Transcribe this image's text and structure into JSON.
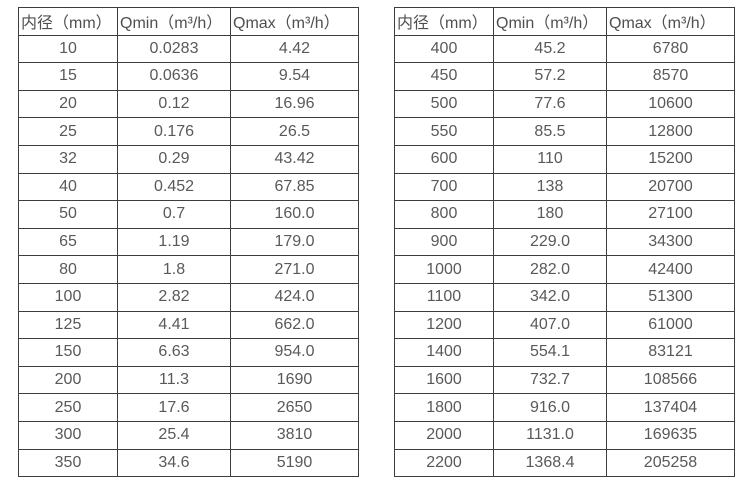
{
  "columns": [
    "内径（mm）",
    "Qmin（m³/h）",
    "Qmax（m³/h）"
  ],
  "left_table": {
    "rows": [
      [
        "10",
        "0.0283",
        "4.42"
      ],
      [
        "15",
        "0.0636",
        "9.54"
      ],
      [
        "20",
        "0.12",
        "16.96"
      ],
      [
        "25",
        "0.176",
        "26.5"
      ],
      [
        "32",
        "0.29",
        "43.42"
      ],
      [
        "40",
        "0.452",
        "67.85"
      ],
      [
        "50",
        "0.7",
        "160.0"
      ],
      [
        "65",
        "1.19",
        "179.0"
      ],
      [
        "80",
        "1.8",
        "271.0"
      ],
      [
        "100",
        "2.82",
        "424.0"
      ],
      [
        "125",
        "4.41",
        "662.0"
      ],
      [
        "150",
        "6.63",
        "954.0"
      ],
      [
        "200",
        "11.3",
        "1690"
      ],
      [
        "250",
        "17.6",
        "2650"
      ],
      [
        "300",
        "25.4",
        "3810"
      ],
      [
        "350",
        "34.6",
        "5190"
      ]
    ]
  },
  "right_table": {
    "rows": [
      [
        "400",
        "45.2",
        "6780"
      ],
      [
        "450",
        "57.2",
        "8570"
      ],
      [
        "500",
        "77.6",
        "10600"
      ],
      [
        "550",
        "85.5",
        "12800"
      ],
      [
        "600",
        "110",
        "15200"
      ],
      [
        "700",
        "138",
        "20700"
      ],
      [
        "800",
        "180",
        "27100"
      ],
      [
        "900",
        "229.0",
        "34300"
      ],
      [
        "1000",
        "282.0",
        "42400"
      ],
      [
        "1100",
        "342.0",
        "51300"
      ],
      [
        "1200",
        "407.0",
        "61000"
      ],
      [
        "1400",
        "554.1",
        "83121"
      ],
      [
        "1600",
        "732.7",
        "108566"
      ],
      [
        "1800",
        "916.0",
        "137404"
      ],
      [
        "2000",
        "1131.0",
        "169635"
      ],
      [
        "2200",
        "1368.4",
        "205258"
      ]
    ]
  },
  "chart_data": {
    "type": "table",
    "title": "",
    "columns": [
      "内径（mm）",
      "Qmin（m³/h）",
      "Qmax（m³/h）"
    ],
    "rows_left": [
      [
        10,
        0.0283,
        4.42
      ],
      [
        15,
        0.0636,
        9.54
      ],
      [
        20,
        0.12,
        16.96
      ],
      [
        25,
        0.176,
        26.5
      ],
      [
        32,
        0.29,
        43.42
      ],
      [
        40,
        0.452,
        67.85
      ],
      [
        50,
        0.7,
        160.0
      ],
      [
        65,
        1.19,
        179.0
      ],
      [
        80,
        1.8,
        271.0
      ],
      [
        100,
        2.82,
        424.0
      ],
      [
        125,
        4.41,
        662.0
      ],
      [
        150,
        6.63,
        954.0
      ],
      [
        200,
        11.3,
        1690
      ],
      [
        250,
        17.6,
        2650
      ],
      [
        300,
        25.4,
        3810
      ],
      [
        350,
        34.6,
        5190
      ]
    ],
    "rows_right": [
      [
        400,
        45.2,
        6780
      ],
      [
        450,
        57.2,
        8570
      ],
      [
        500,
        77.6,
        10600
      ],
      [
        550,
        85.5,
        12800
      ],
      [
        600,
        110,
        15200
      ],
      [
        700,
        138,
        20700
      ],
      [
        800,
        180,
        27100
      ],
      [
        900,
        229.0,
        34300
      ],
      [
        1000,
        282.0,
        42400
      ],
      [
        1100,
        342.0,
        51300
      ],
      [
        1200,
        407.0,
        61000
      ],
      [
        1400,
        554.1,
        83121
      ],
      [
        1600,
        732.7,
        108566
      ],
      [
        1800,
        916.0,
        137404
      ],
      [
        2000,
        1131.0,
        169635
      ],
      [
        2200,
        1368.4,
        205258
      ]
    ]
  },
  "colors": {
    "border": "#3d3d3d",
    "text": "#595959",
    "background": "#ffffff"
  }
}
